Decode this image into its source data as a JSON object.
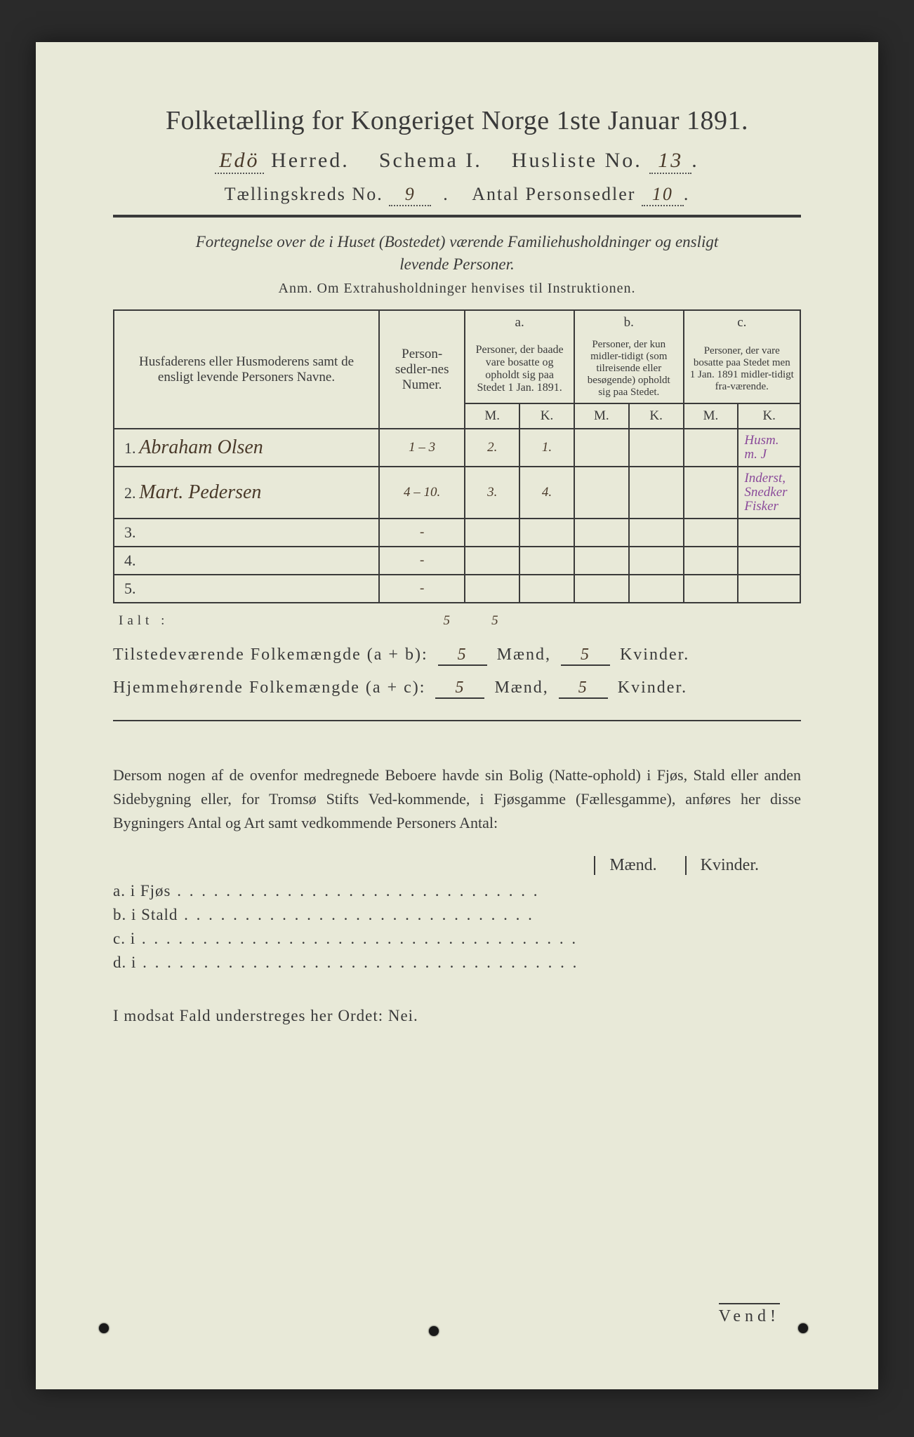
{
  "colors": {
    "paper_bg": "#e8e9d8",
    "ink": "#3a3a3a",
    "handwriting": "#4a3a2a",
    "margin_note": "#8a4a9a",
    "page_surround": "#2a2a2a"
  },
  "typography": {
    "title_fontsize_pt": 28,
    "body_fontsize_pt": 17,
    "handwriting_family": "cursive"
  },
  "header": {
    "title": "Folketælling for Kongeriget Norge 1ste Januar 1891.",
    "herred_label_prefix": "",
    "herred_value": "Edö",
    "herred_label": " Herred.",
    "schema_label": "Schema I.",
    "husliste_label": "Husliste No.",
    "husliste_value": "13",
    "kreds_label": "Tællingskreds No.",
    "kreds_value": "9",
    "antal_label": "Antal Personsedler",
    "antal_value": "10"
  },
  "intro": {
    "line1": "Fortegnelse over de i Huset (Bostedet) værende Familiehusholdninger og ensligt",
    "line2": "levende Personer.",
    "anm": "Anm.  Om Extrahusholdninger henvises til Instruktionen."
  },
  "table": {
    "col_name": "Husfaderens eller Husmoderens samt de ensligt levende Personers Navne.",
    "col_numer": "Person-sedler-nes Numer.",
    "group_a_label": "a.",
    "group_a_desc": "Personer, der baade vare bosatte og opholdt sig paa Stedet 1 Jan. 1891.",
    "group_b_label": "b.",
    "group_b_desc": "Personer, der kun midler-tidigt (som tilreisende eller besøgende) opholdt sig paa Stedet.",
    "group_c_label": "c.",
    "group_c_desc": "Personer, der vare bosatte paa Stedet men 1 Jan. 1891 midler-tidigt fra-værende.",
    "m_label": "M.",
    "k_label": "K.",
    "rows": [
      {
        "n": "1.",
        "name": "Abraham Olsen",
        "numer": "1 – 3",
        "a_m": "2.",
        "a_k": "1.",
        "b_m": "",
        "b_k": "",
        "c_m": "",
        "c_k": "",
        "note": "Husm. m. J"
      },
      {
        "n": "2.",
        "name": "Mart. Pedersen",
        "numer": "4 – 10.",
        "a_m": "3.",
        "a_k": "4.",
        "b_m": "",
        "b_k": "",
        "c_m": "",
        "c_k": "",
        "note": "Inderst, Snedker Fisker"
      },
      {
        "n": "3.",
        "name": "",
        "numer": "-",
        "a_m": "",
        "a_k": "",
        "b_m": "",
        "b_k": "",
        "c_m": "",
        "c_k": "",
        "note": ""
      },
      {
        "n": "4.",
        "name": "",
        "numer": "-",
        "a_m": "",
        "a_k": "",
        "b_m": "",
        "b_k": "",
        "c_m": "",
        "c_k": "",
        "note": ""
      },
      {
        "n": "5.",
        "name": "",
        "numer": "-",
        "a_m": "",
        "a_k": "",
        "b_m": "",
        "b_k": "",
        "c_m": "",
        "c_k": "",
        "note": ""
      }
    ],
    "ialt_label": "Ialt :",
    "ialt_m": "5",
    "ialt_k": "5"
  },
  "summary": {
    "line1_label": "Tilstedeværende Folkemængde (a + b):",
    "line1_m": "5",
    "line1_m_unit": "Mænd,",
    "line1_k": "5",
    "line1_k_unit": "Kvinder.",
    "line2_label": "Hjemmehørende Folkemængde (a + c):",
    "line2_m": "5",
    "line2_m_unit": "Mænd,",
    "line2_k": "5",
    "line2_k_unit": "Kvinder."
  },
  "paragraph": "Dersom nogen af de ovenfor medregnede Beboere havde sin Bolig (Natte-ophold) i Fjøs, Stald eller anden Sidebygning eller, for Tromsø Stifts Ved-kommende, i Fjøsgamme (Fællesgamme), anføres her disse Bygningers Antal og Art samt vedkommende Personers Antal:",
  "mk_head": {
    "m": "Mænd.",
    "k": "Kvinder."
  },
  "list": {
    "a": "a.  i      Fjøs",
    "b": "b.  i      Stald",
    "c": "c.  i",
    "d": "d.  i"
  },
  "footer": "I modsat Fald understreges her Ordet: Nei.",
  "vend": "Vend!"
}
